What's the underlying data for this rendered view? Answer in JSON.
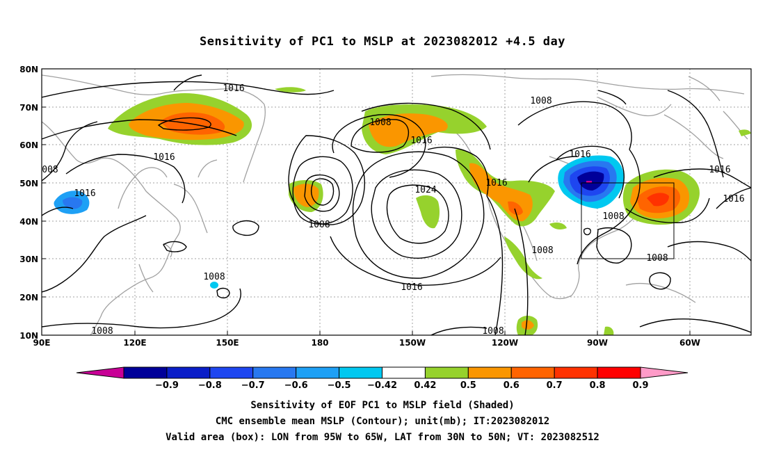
{
  "title": "Sensitivity of PC1 to MSLP at 2023082012 +4.5 day",
  "lat_labels": [
    "80N",
    "70N",
    "60N",
    "50N",
    "40N",
    "30N",
    "20N",
    "10N"
  ],
  "lon_labels": [
    "90E",
    "120E",
    "150E",
    "180",
    "150W",
    "120W",
    "90W",
    "60W"
  ],
  "contour_labels": [
    {
      "text": "1016"
    },
    {
      "text": "1008"
    },
    {
      "text": "1008"
    },
    {
      "text": "1016"
    },
    {
      "text": "1016"
    },
    {
      "text": "1016"
    },
    {
      "text": "008"
    },
    {
      "text": "1016"
    },
    {
      "text": "1024"
    },
    {
      "text": "1016"
    },
    {
      "text": "1016"
    },
    {
      "text": "1008"
    },
    {
      "text": "1008"
    },
    {
      "text": "1008"
    },
    {
      "text": "1008"
    },
    {
      "text": "1008"
    },
    {
      "text": "1016"
    },
    {
      "text": "1008"
    },
    {
      "text": "1008"
    }
  ],
  "colorbar": {
    "labels": [
      "−0.9",
      "−0.8",
      "−0.7",
      "−0.6",
      "−0.5",
      "−0.42",
      "0.42",
      "0.5",
      "0.6",
      "0.7",
      "0.8",
      "0.9"
    ],
    "colors": [
      "#000099",
      "#0a1ec8",
      "#1e46f0",
      "#2878f0",
      "#1ea0f5",
      "#00c8f0",
      "#ffffff",
      "#96d22d",
      "#fa9600",
      "#ff6400",
      "#ff3200",
      "#ff0000"
    ],
    "under_color": "#c80096",
    "over_color": "#ff9bc8"
  },
  "footer": {
    "line1": "Sensitivity of EOF PC1 to MSLP field (Shaded)",
    "line2": "CMC ensemble mean MSLP (Contour); unit(mb); IT:2023082012",
    "line3": "Valid area (box): LON from 95W to 65W, LAT from 30N to 50N; VT: 2023082512"
  }
}
